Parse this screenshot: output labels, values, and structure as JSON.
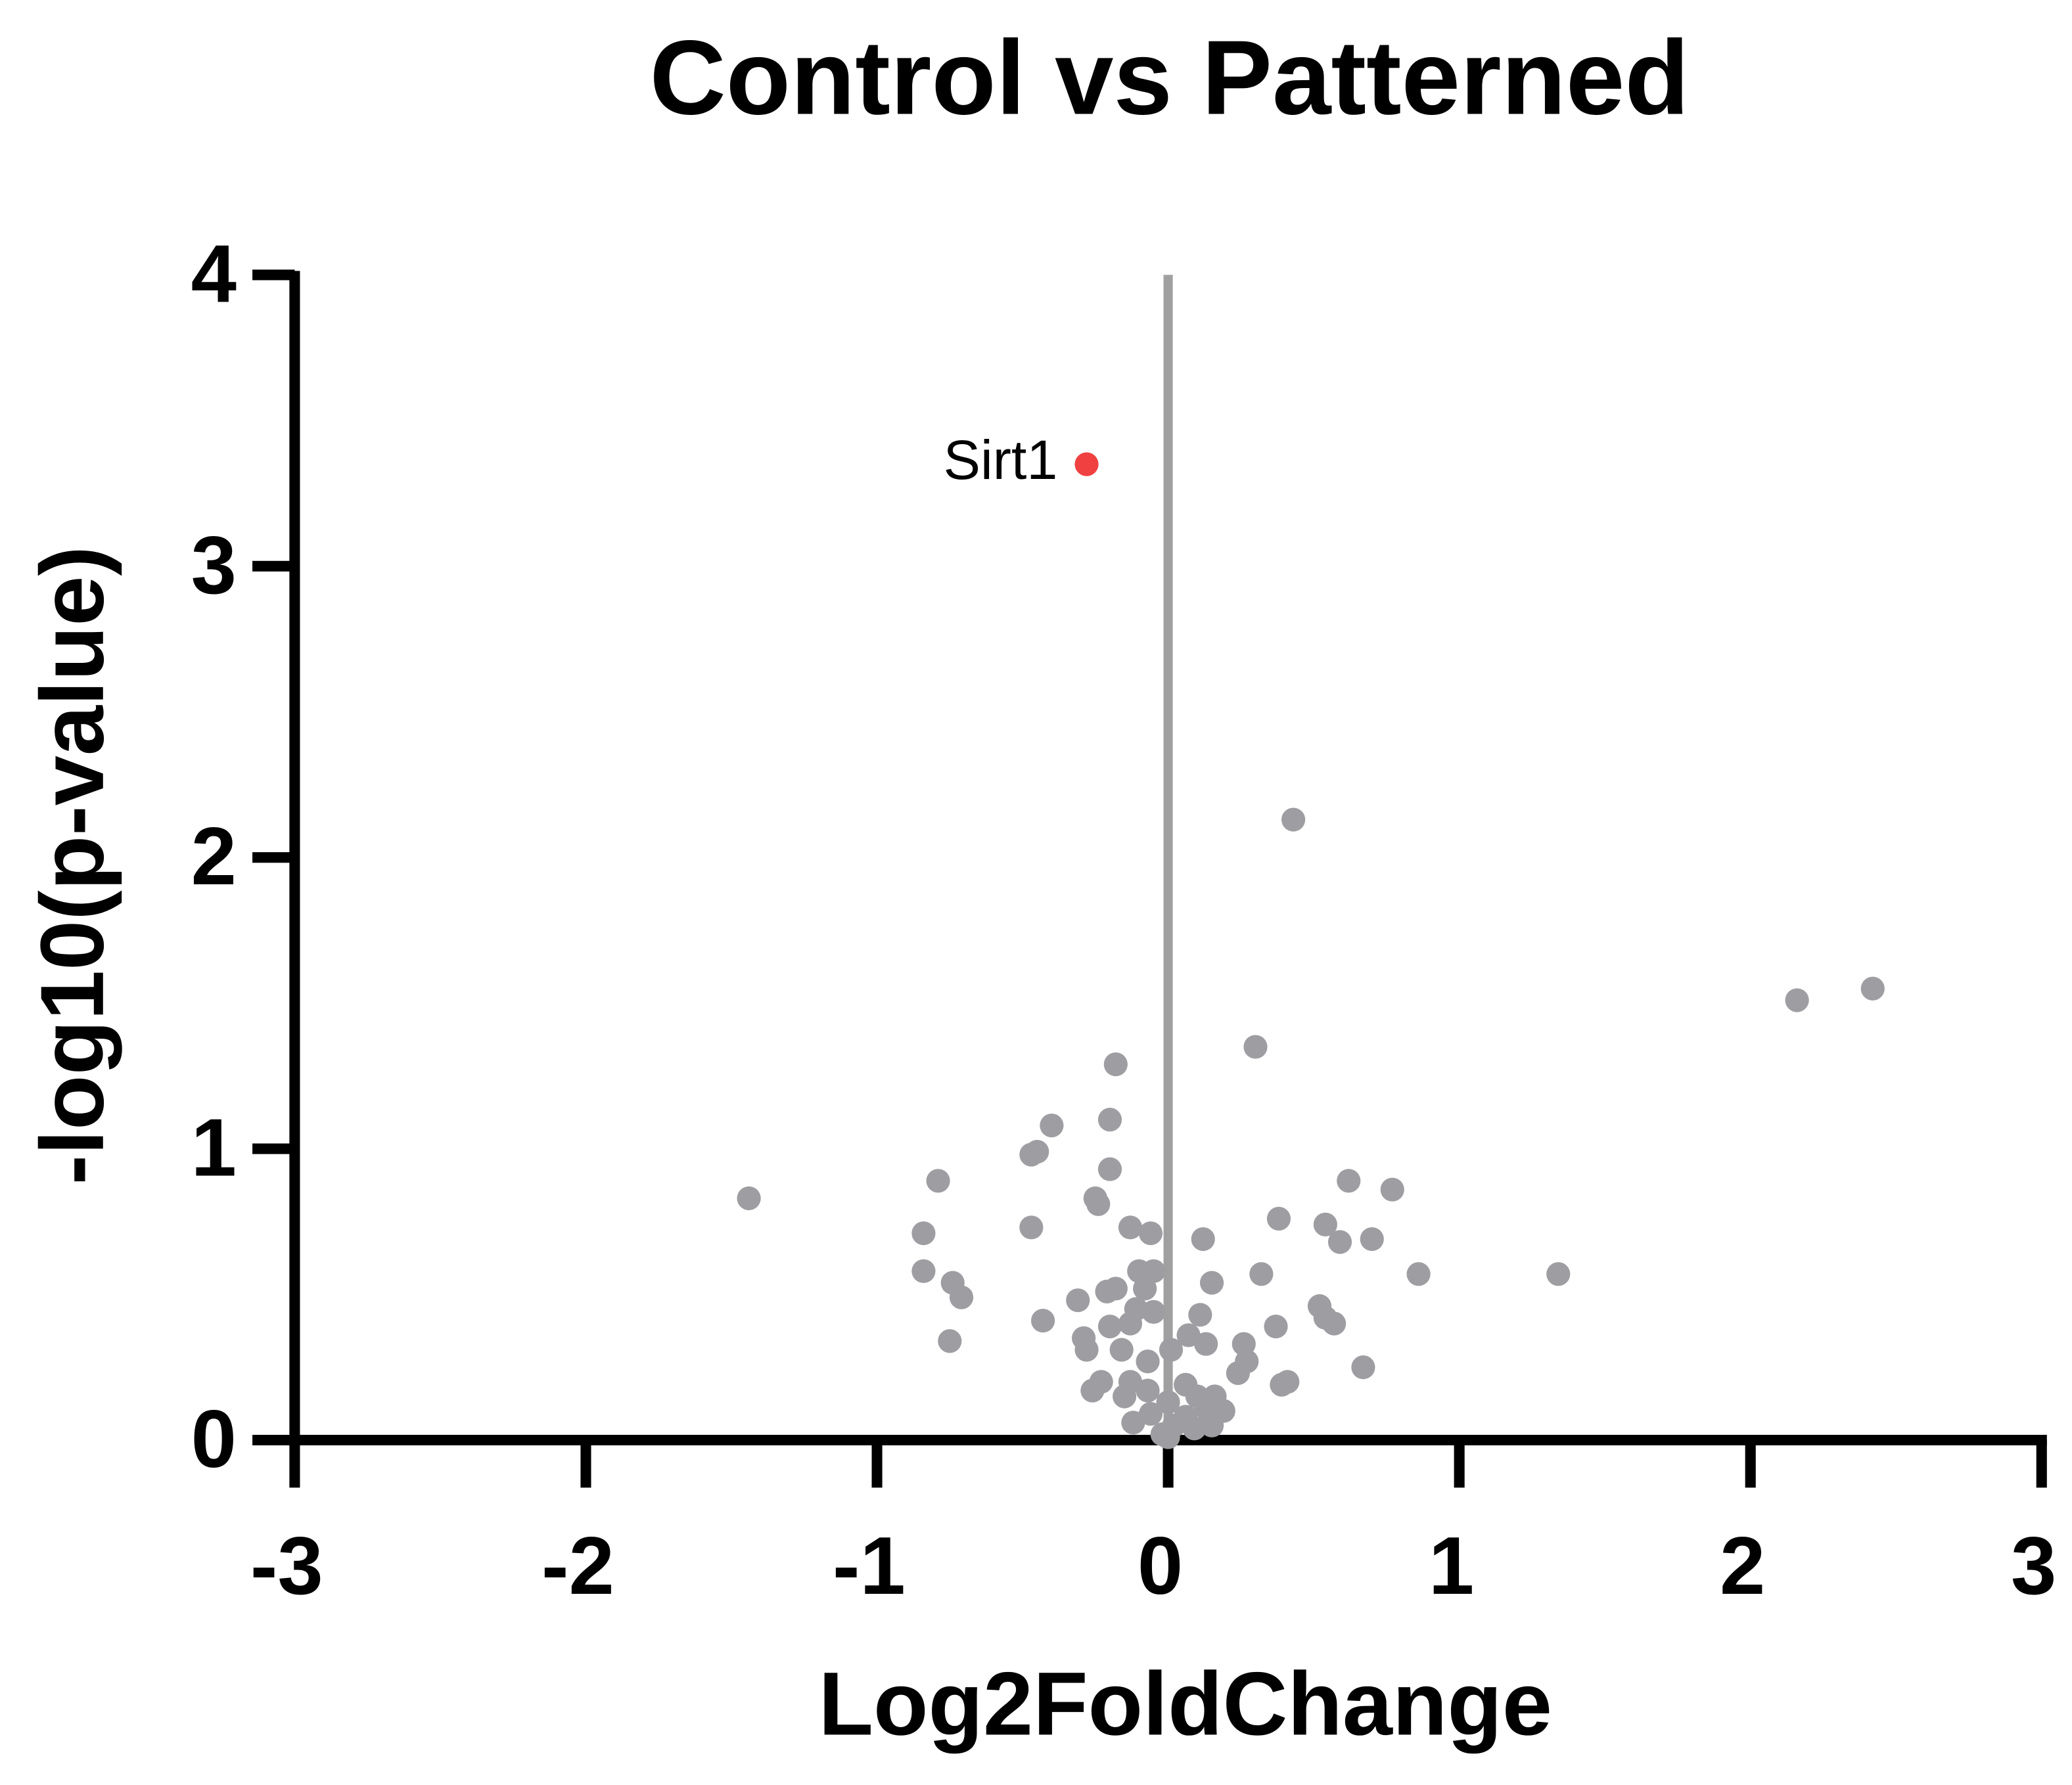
{
  "chart_data": {
    "type": "scatter",
    "title": "Control vs Patterned",
    "x_label": "Log2FoldChange",
    "y_label": "-log10(p-value)",
    "xlim": [
      -3,
      3
    ],
    "xticks": [
      -3,
      -2,
      -1,
      0,
      1,
      2,
      3
    ],
    "ylim": [
      0,
      4
    ],
    "yticks": [
      0,
      1,
      2,
      3,
      4
    ],
    "vline": 0,
    "vline_color": "#a0a0a0",
    "series": [
      {
        "color": "#9e9ea2",
        "x": [
          0.43,
          2.42,
          2.16,
          0.3,
          -0.18,
          -0.4,
          -0.2,
          -0.45,
          -0.47,
          -0.2,
          -0.79,
          0.62,
          0.77,
          -1.44,
          -0.25,
          -0.24,
          0.38,
          0.54,
          -0.47,
          -0.13,
          -0.06,
          -0.84,
          0.12,
          0.7,
          0.59,
          -0.84,
          -0.1,
          -0.05,
          0.32,
          0.86,
          1.34,
          -0.74,
          0.15,
          -0.18,
          -0.21,
          -0.08,
          -0.71,
          -0.31,
          0.52,
          -0.11,
          -0.05,
          0.11,
          -0.43,
          0.54,
          0.57,
          0.37,
          -0.2,
          -0.13,
          -0.29,
          -0.75,
          0.07,
          0.13,
          0.26,
          -0.28,
          -0.16,
          0.01,
          0.27,
          0.67,
          -0.07,
          0.24,
          -0.13,
          0.41,
          0.39,
          -0.23,
          -0.26,
          0.06,
          -0.07,
          -0.15,
          0.1,
          0.16,
          0.0,
          0.13,
          0.19,
          -0.06,
          0.06,
          -0.12,
          0.02,
          0.15,
          -0.02,
          0.09,
          0.0
        ],
        "values": [
          2.13,
          1.55,
          1.51,
          1.35,
          1.29,
          1.08,
          1.1,
          0.99,
          0.98,
          0.93,
          0.89,
          0.89,
          0.86,
          0.83,
          0.83,
          0.81,
          0.76,
          0.74,
          0.73,
          0.73,
          0.71,
          0.71,
          0.69,
          0.69,
          0.68,
          0.58,
          0.58,
          0.58,
          0.57,
          0.57,
          0.57,
          0.54,
          0.54,
          0.52,
          0.51,
          0.52,
          0.49,
          0.48,
          0.46,
          0.45,
          0.44,
          0.43,
          0.41,
          0.42,
          0.4,
          0.39,
          0.39,
          0.4,
          0.35,
          0.34,
          0.36,
          0.33,
          0.33,
          0.31,
          0.31,
          0.31,
          0.27,
          0.25,
          0.27,
          0.23,
          0.2,
          0.2,
          0.19,
          0.2,
          0.17,
          0.19,
          0.17,
          0.15,
          0.15,
          0.15,
          0.13,
          0.11,
          0.1,
          0.09,
          0.08,
          0.06,
          0.05,
          0.05,
          0.02,
          0.04,
          0.01
        ]
      },
      {
        "name": "Sirt1",
        "color": "#f04040",
        "x": [
          -0.28
        ],
        "values": [
          3.35
        ]
      }
    ]
  }
}
